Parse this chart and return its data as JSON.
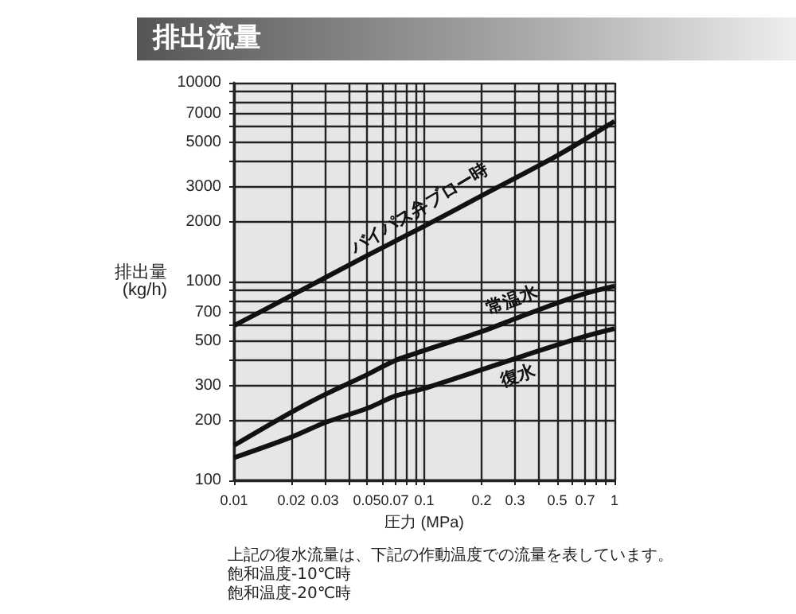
{
  "chart_data": {
    "type": "line",
    "title": "排出流量",
    "xlabel": "圧力 (MPa)",
    "ylabel": "排出量 (kg/h)",
    "log": "xy",
    "xlim": [
      0.01,
      1
    ],
    "xticks": [
      0.01,
      0.02,
      0.03,
      {
        "value": 0.04,
        "label": null
      },
      0.05,
      {
        "value": 0.06,
        "label": null
      },
      0.07,
      {
        "value": 0.08,
        "label": null
      },
      {
        "value": 0.09,
        "label": null
      },
      0.1,
      0.2,
      0.3,
      {
        "value": 0.4,
        "label": null
      },
      0.5,
      {
        "value": 0.6,
        "label": null
      },
      0.7,
      {
        "value": 0.8,
        "label": null
      },
      {
        "value": 0.9,
        "label": null
      },
      1
    ],
    "ylim": [
      100,
      10000
    ],
    "yticks": [
      100,
      200,
      300,
      {
        "value": 400,
        "label": null
      },
      500,
      {
        "value": 600,
        "label": null
      },
      700,
      {
        "value": 800,
        "label": null
      },
      {
        "value": 900,
        "label": null
      },
      1000,
      2000,
      3000,
      {
        "value": 4000,
        "label": null
      },
      5000,
      {
        "value": 6000,
        "label": null
      },
      7000,
      {
        "value": 8000,
        "label": null
      },
      {
        "value": 9000,
        "label": null
      },
      10000
    ],
    "grid": true,
    "legend": false,
    "marker": "none",
    "line_style": "solid",
    "series": [
      {
        "name": "バイパス弁ブロー時",
        "color": "#111111",
        "x": [
          0.01,
          0.02,
          0.05,
          0.1,
          0.2,
          0.5,
          1
        ],
        "values": [
          600,
          850,
          1350,
          1900,
          2700,
          4300,
          6400
        ]
      },
      {
        "name": "常温水",
        "color": "#111111",
        "x": [
          0.01,
          0.02,
          0.03,
          0.05,
          0.07,
          0.1,
          0.2,
          0.3,
          0.5,
          0.7,
          1
        ],
        "values": [
          150,
          220,
          270,
          340,
          400,
          450,
          560,
          650,
          780,
          870,
          950
        ]
      },
      {
        "name": "復水",
        "color": "#111111",
        "x": [
          0.01,
          0.02,
          0.03,
          0.05,
          0.07,
          0.1,
          0.2,
          0.3,
          0.5,
          0.7,
          1
        ],
        "values": [
          130,
          165,
          195,
          230,
          265,
          290,
          360,
          410,
          480,
          530,
          580
        ]
      }
    ],
    "annotations": [
      "上記の復水流量は、下記の作動温度での流量を表しています。",
      "飽和温度-10℃時",
      "飽和温度-20℃時"
    ]
  }
}
